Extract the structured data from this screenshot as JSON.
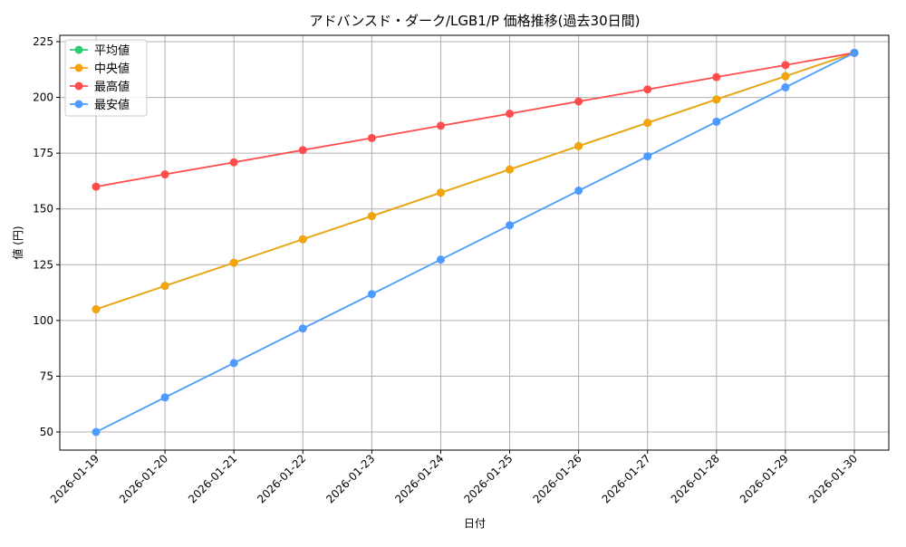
{
  "chart_data": {
    "type": "line",
    "title": "アドバンスド・ダーク/LGB1/P 価格推移(過去30日間)",
    "xlabel": "日付",
    "ylabel": "値 (円)",
    "ylim": [
      42,
      228
    ],
    "yticks": [
      50,
      75,
      100,
      125,
      150,
      175,
      200,
      225
    ],
    "grid": true,
    "legend_position": "top-left",
    "categories": [
      "2026-01-19",
      "2026-01-20",
      "2026-01-21",
      "2026-01-22",
      "2026-01-23",
      "2026-01-24",
      "2026-01-25",
      "2026-01-26",
      "2026-01-27",
      "2026-01-28",
      "2026-01-29",
      "2026-01-30"
    ],
    "series": [
      {
        "name": "平均値",
        "color": "#2ecc71",
        "values": [
          105,
          115.5,
          125.9,
          136.4,
          146.8,
          157.3,
          167.7,
          178.2,
          188.6,
          199.1,
          209.5,
          220
        ]
      },
      {
        "name": "中央値",
        "color": "#f5a30a",
        "values": [
          105,
          115.5,
          125.9,
          136.4,
          146.8,
          157.3,
          167.7,
          178.2,
          188.6,
          199.1,
          209.5,
          220
        ]
      },
      {
        "name": "最高値",
        "color": "#ff4d4d",
        "values": [
          160,
          165.5,
          170.9,
          176.4,
          181.8,
          187.3,
          192.7,
          198.2,
          203.6,
          209.1,
          214.5,
          220
        ]
      },
      {
        "name": "最安値",
        "color": "#4d9bff",
        "values": [
          50,
          65.5,
          80.9,
          96.4,
          111.8,
          127.3,
          142.7,
          158.2,
          173.6,
          189.1,
          204.5,
          220
        ]
      }
    ]
  }
}
